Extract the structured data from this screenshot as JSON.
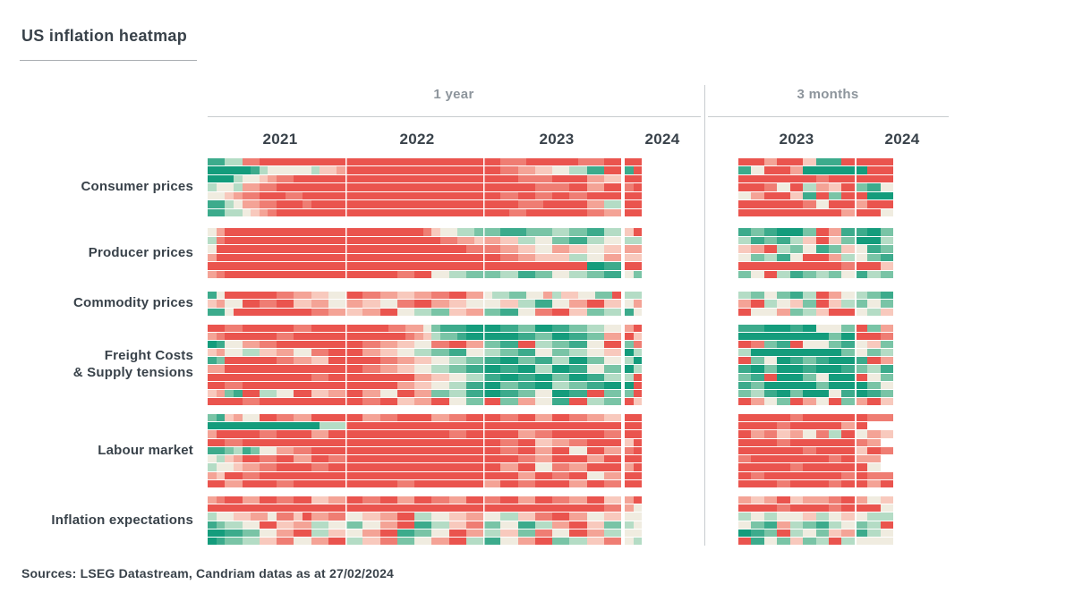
{
  "title": "US inflation heatmap",
  "header": {
    "group_1_label": "1 year",
    "group_2_label": "3 months",
    "years_1_year": [
      "2021",
      "2022",
      "2023",
      "2024"
    ],
    "years_3_months": [
      "2023",
      "2024"
    ]
  },
  "source": "Sources: LSEG Datastream, Candriam datas as at 27/02/2024",
  "colors": {
    "strong_green": "#149c7c",
    "neutral_cream": "#f0ece0",
    "strong_red": "#ea544e",
    "text_dark": "#39424a",
    "text_gray": "#8d959c",
    "line_gray": "#c8cccf"
  },
  "chart_data": {
    "type": "heatmap",
    "title": "US inflation heatmap",
    "legend": "none (color-coded only)",
    "palette_order_note": "char 0 = strongest green, 4 = neutral cream, 8 = strongest red, . = no data",
    "palette": {
      "0": "#149c7c",
      "1": "#3cab8c",
      "2": "#79c4a6",
      "3": "#b4dcc5",
      "4": "#f0ece0",
      "5": "#f8c9bd",
      "6": "#f4a396",
      "7": "#ef7d73",
      "8": "#ea544e",
      ".": "transparent"
    },
    "column_groups": [
      {
        "label": "1 year",
        "years": [
          "2021",
          "2022",
          "2023",
          "2024"
        ],
        "columns_per_year": [
          16,
          16,
          16,
          2
        ]
      },
      {
        "label": "3 months",
        "years": [
          "2023",
          "2024"
        ],
        "columns_per_year": [
          9,
          3
        ]
      }
    ],
    "categories": [
      {
        "id": "consumer-prices",
        "label": "Consumer prices",
        "rows_1y": [
          "11337788888888888888888888888888887778888887778888",
          "00000134444435568888888888888888887766554433118818",
          "00034456778888888888888888888888888877778888665588",
          "34436677888888888888888888888888888888777788668878",
          "44567788877888888888888888888888887788778877888888",
          "11346677888788888888888888888888888877788888663388",
          "11334567888888888888888888888888888778888888776688"
        ],
        "rows_3m": [
          "886885118888",
          "148860000088",
          "888888788888",
          "887483658214",
          "468851828800",
          "888887488688",
          "888888886884"
        ]
      },
      {
        "id": "producer-prices",
        "label": "Producer prices",
        "rows_1y": [
          "46888888888888888888888887544332221112223322113358",
          "37888888888888888888888888877665665533442211334433",
          "48888888888888888888888888888877776655446655445566",
          "68888888888888888888888888888888887766555533446655",
          "88888888888888888888888888888888888888888888001188",
          "67888888888888888888887788443322223311224433221142"
        ],
        "rows_3m": [
          "121002861102",
          "312135852003",
          "568324125412",
          "423148863421",
          "888888887885",
          "248312324132"
        ]
      },
      {
        "id": "commodity-prices",
        "label": "Commodity prices",
        "rows_1y": [
          "14888888776655448877665566778866433224463554422833",
          "56448877885566446655447788665544445533114466885546",
          "11488888888877665566884433225566221144778855223314"
        ],
        "rows_3m": [
          "324213864321",
          "683452853242",
          "844623588435"
        ]
      },
      {
        "id": "freight-costs-supply-tensions",
        "label": "Freight Costs\n& Supply tensions",
        "rows_1y": [
          "88778888887788888888877664211100001122001122334468",
          "67888888778888888888888765322100000011220011226685",
          "01446677888888888877665544778866221188332211448827",
          "56443355664477888866554433221144332211442233445503",
          "12888888776655888888776655443322110022113300224430",
          "66888888888888888877665544332211001100330011442203",
          "88888888888877888888888866554433110011002200113338",
          "88778888888888888888886655443311002211003322110008",
          "56218833448855668866448866223311001122440011882228",
          "88887788888888888877885566884422882266441188332285"
        ],
        "rows_3m": [
          "110010442826",
          "000000020887",
          "872184421452",
          "300000002423",
          "824012100186",
          "102001001231",
          "218002400842",
          "120000200024",
          "231020041012",
          "864286482685"
        ]
      },
      {
        "id": "labour-market",
        "label": "Labour market",
        "rows_1y": [
          "21564488776688888866778888667788887788668877665588",
          "00000000000003338888888888888888888888888888888888",
          "68888877888866888888888888887788888866778888887788",
          "88778888888888888888888888888888887788556677888858",
          "11231244667788888888888888888888887788668844886678",
          "43568877886688778888888888888888888877668888668888",
          "34456677888877888888888888888888886688447766888868",
          "65887788888888888888888888888888888866887788446688",
          "88668888778888888888887788888888668877888866887788"
        ],
        "rows_3m": [
          "888878888877",
          "8887888868..",
          "867564738465",
          "88878888876.",
          "888887888587",
          "78888887866.",
          "88887888884.",
          "878888887877",
          "888788878868"
        ]
      },
      {
        "id": "inflation-expectations",
        "label": "Inflation expectations",
        "rows_1y": [
          "67886688778855668877886688776688778866887766885568",
          "88888888888888888888888888888888888888888888887764",
          "34455664775866774455668833445566443355778866445544",
          "12334488556633442244668811335577224411336688552234",
          "00112244668833554466881122448866335522774488663344",
          "01223355774466883355772244668833114466882233557743"
        ],
        "rows_3m": [
          "656856678645",
          "888788878884",
          "343445345433",
          "421632134238",
          "012834256134",
          "814252383444"
        ]
      }
    ]
  }
}
